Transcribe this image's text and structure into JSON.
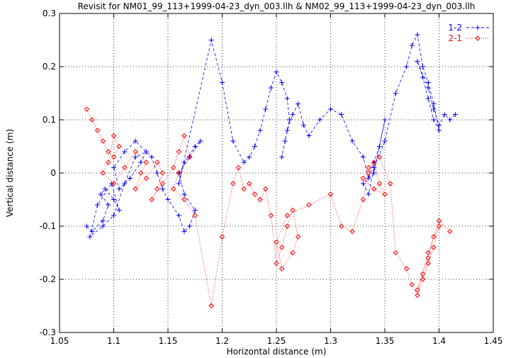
{
  "chart_data": {
    "type": "scatter",
    "title": "Revisit for NM01_99_113+1999-04-23_dyn_003.llh & NM02_99_113+1999-04-23_dyn_003.llh",
    "xlabel": "Horizontal distance (m)",
    "ylabel": "Vertical distance (m)",
    "xlim": [
      1.05,
      1.45
    ],
    "ylim": [
      -0.3,
      0.3
    ],
    "xticks": [
      "1.05",
      "1.1",
      "1.15",
      "1.2",
      "1.25",
      "1.3",
      "1.35",
      "1.4",
      "1.45"
    ],
    "yticks": [
      "0.3",
      "0.2",
      "0.1",
      "0",
      "-0.1",
      "-0.2",
      "-0.3"
    ],
    "grid": "dotted",
    "legend_position": "top-right",
    "series": [
      {
        "name": "1-2",
        "color": "#0000ff",
        "marker": "plus",
        "line": "dashed",
        "x": [
          1.075,
          1.08,
          1.09,
          1.095,
          1.088,
          1.092,
          1.1,
          1.105,
          1.098,
          1.085,
          1.078,
          1.09,
          1.1,
          1.11,
          1.12,
          1.13,
          1.125,
          1.115,
          1.105,
          1.1,
          1.11,
          1.12,
          1.135,
          1.14,
          1.145,
          1.15,
          1.16,
          1.165,
          1.17,
          1.175,
          1.165,
          1.16,
          1.17,
          1.18,
          1.175,
          1.165,
          1.16,
          1.19,
          1.2,
          1.21,
          1.22,
          1.225,
          1.23,
          1.235,
          1.24,
          1.245,
          1.25,
          1.255,
          1.26,
          1.262,
          1.258,
          1.255,
          1.26,
          1.265,
          1.27,
          1.275,
          1.28,
          1.29,
          1.3,
          1.31,
          1.32,
          1.33,
          1.335,
          1.34,
          1.345,
          1.35,
          1.34,
          1.33,
          1.335,
          1.34,
          1.35,
          1.36,
          1.37,
          1.375,
          1.38,
          1.385,
          1.39,
          1.395,
          1.4,
          1.395,
          1.39,
          1.385,
          1.38,
          1.39,
          1.395,
          1.4,
          1.405,
          1.41,
          1.415
        ],
        "y": [
          -0.1,
          -0.11,
          -0.09,
          -0.06,
          -0.04,
          -0.03,
          -0.05,
          -0.07,
          -0.02,
          -0.06,
          -0.12,
          -0.1,
          -0.08,
          -0.02,
          0.03,
          0.04,
          0.02,
          -0.01,
          -0.03,
          0.01,
          0.04,
          0.06,
          0.03,
          0.0,
          -0.03,
          -0.05,
          -0.08,
          -0.11,
          -0.1,
          -0.07,
          -0.04,
          0.0,
          0.03,
          0.06,
          0.05,
          0.02,
          -0.02,
          0.25,
          0.17,
          0.06,
          0.02,
          0.03,
          0.05,
          0.08,
          0.12,
          0.16,
          0.19,
          0.17,
          0.14,
          0.1,
          0.06,
          0.03,
          0.08,
          0.11,
          0.13,
          0.09,
          0.07,
          0.1,
          0.12,
          0.11,
          0.06,
          0.03,
          -0.01,
          0.02,
          0.05,
          0.1,
          0.0,
          -0.02,
          -0.04,
          0.01,
          0.06,
          0.15,
          0.2,
          0.24,
          0.26,
          0.2,
          0.17,
          0.13,
          0.08,
          0.1,
          0.14,
          0.18,
          0.21,
          0.16,
          0.12,
          0.09,
          0.11,
          0.1,
          0.11
        ]
      },
      {
        "name": "2-1",
        "color": "#ff0000",
        "marker": "diamond",
        "line": "dotted",
        "x": [
          1.075,
          1.08,
          1.085,
          1.09,
          1.095,
          1.1,
          1.105,
          1.1,
          1.095,
          1.09,
          1.1,
          1.11,
          1.12,
          1.13,
          1.125,
          1.12,
          1.13,
          1.14,
          1.145,
          1.14,
          1.135,
          1.145,
          1.155,
          1.16,
          1.165,
          1.17,
          1.16,
          1.155,
          1.165,
          1.175,
          1.19,
          1.2,
          1.21,
          1.215,
          1.22,
          1.225,
          1.23,
          1.235,
          1.24,
          1.245,
          1.25,
          1.255,
          1.26,
          1.265,
          1.27,
          1.265,
          1.255,
          1.25,
          1.26,
          1.28,
          1.3,
          1.31,
          1.32,
          1.33,
          1.335,
          1.34,
          1.345,
          1.35,
          1.34,
          1.33,
          1.335,
          1.345,
          1.355,
          1.36,
          1.37,
          1.375,
          1.38,
          1.385,
          1.39,
          1.395,
          1.4,
          1.395,
          1.39,
          1.385,
          1.38,
          1.39,
          1.4,
          1.41
        ],
        "y": [
          0.12,
          0.1,
          0.08,
          0.06,
          0.04,
          0.03,
          0.05,
          0.07,
          0.02,
          0.0,
          -0.02,
          0.01,
          0.04,
          0.02,
          0.0,
          -0.03,
          -0.01,
          0.02,
          0.0,
          -0.03,
          -0.05,
          -0.02,
          0.01,
          0.04,
          0.07,
          0.03,
          0.0,
          -0.03,
          -0.05,
          -0.08,
          -0.25,
          -0.12,
          -0.02,
          0.01,
          -0.03,
          -0.02,
          -0.04,
          -0.05,
          -0.03,
          -0.08,
          -0.17,
          -0.14,
          -0.1,
          -0.07,
          -0.12,
          -0.15,
          -0.18,
          -0.13,
          -0.08,
          -0.06,
          -0.04,
          -0.1,
          -0.11,
          -0.05,
          0.0,
          0.02,
          -0.02,
          -0.04,
          -0.03,
          -0.01,
          0.01,
          0.03,
          -0.02,
          -0.15,
          -0.18,
          -0.21,
          -0.23,
          -0.2,
          -0.17,
          -0.14,
          -0.1,
          -0.12,
          -0.16,
          -0.19,
          -0.22,
          -0.15,
          -0.09,
          -0.11
        ]
      }
    ]
  }
}
